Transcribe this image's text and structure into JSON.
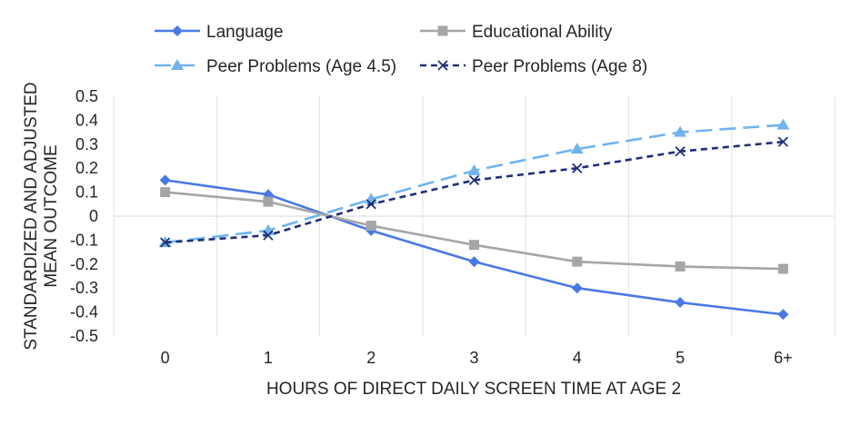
{
  "chart_data": {
    "type": "line",
    "title": "",
    "xlabel": "HOURS OF DIRECT DAILY SCREEN TIME AT AGE 2",
    "ylabel_lines": [
      "STANDARDIZED AND ADJUSTED",
      "MEAN OUTCOME"
    ],
    "categories": [
      "0",
      "1",
      "2",
      "3",
      "4",
      "5",
      "6+"
    ],
    "ylim": [
      -0.5,
      0.5
    ],
    "yticks": [
      0.5,
      0.4,
      0.3,
      0.2,
      0.1,
      0,
      -0.1,
      -0.2,
      -0.3,
      -0.4,
      -0.5
    ],
    "ytick_labels": [
      "0.5",
      "0.4",
      "0.3",
      "0.2",
      "0.1",
      "0",
      "-0.1",
      "-0.2",
      "-0.3",
      "-0.4",
      "-0.5"
    ],
    "legend_position": "top",
    "series": [
      {
        "name": "Language",
        "color": "#4a78e6",
        "marker": "diamond",
        "dash": "solid",
        "values": [
          0.15,
          0.09,
          -0.06,
          -0.19,
          -0.3,
          -0.36,
          -0.41
        ]
      },
      {
        "name": "Educational Ability",
        "color": "#a6a6a6",
        "marker": "square",
        "dash": "solid",
        "values": [
          0.1,
          0.06,
          -0.04,
          -0.12,
          -0.19,
          -0.21,
          -0.22
        ]
      },
      {
        "name": "Peer Problems (Age 4.5)",
        "color": "#6fb3ef",
        "marker": "triangle",
        "dash": "long",
        "values": [
          -0.11,
          -0.06,
          0.07,
          0.19,
          0.28,
          0.35,
          0.38
        ]
      },
      {
        "name": "Peer Problems (Age 8)",
        "color": "#1f2f7a",
        "marker": "x",
        "dash": "short",
        "values": [
          -0.11,
          -0.08,
          0.05,
          0.15,
          0.2,
          0.27,
          0.31
        ]
      }
    ]
  }
}
